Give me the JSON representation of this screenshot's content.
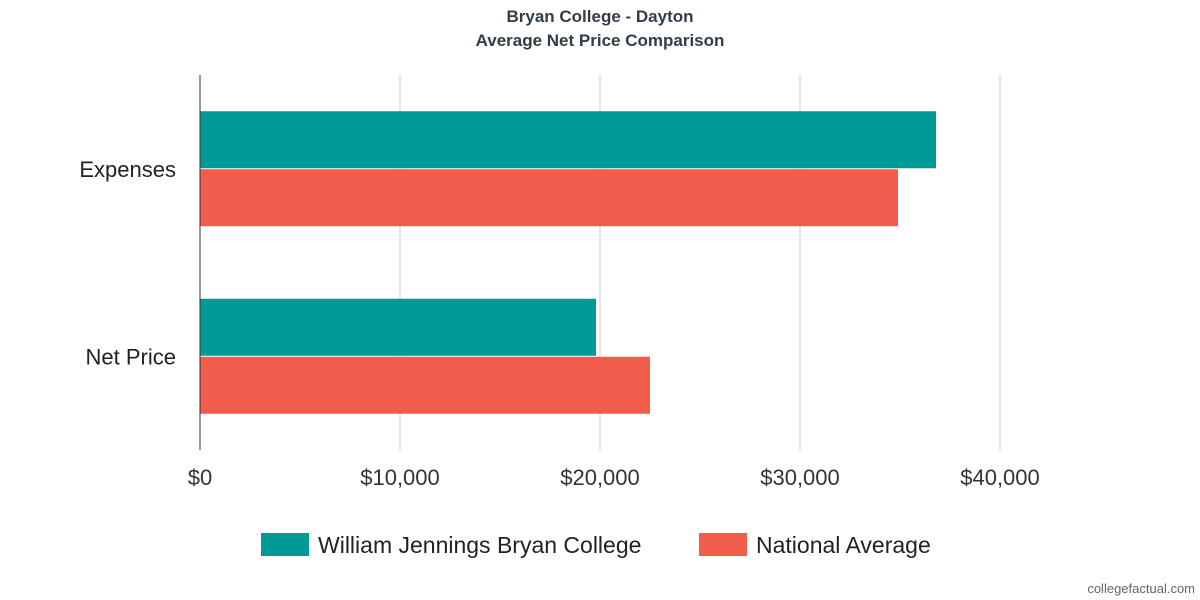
{
  "chart_data": {
    "type": "bar",
    "orientation": "horizontal",
    "title": "Bryan College - Dayton",
    "subtitle": "Average Net Price Comparison",
    "categories": [
      "Expenses",
      "Net Price"
    ],
    "series": [
      {
        "name": "William Jennings Bryan College",
        "color": "#009a96",
        "values": [
          36800,
          19800
        ]
      },
      {
        "name": "National Average",
        "color": "#f25c4c",
        "values": [
          34900,
          22500
        ]
      }
    ],
    "xlim": [
      0,
      40000
    ],
    "x_ticks": [
      0,
      10000,
      20000,
      30000,
      40000
    ],
    "x_tick_labels": [
      "$0",
      "$10,000",
      "$20,000",
      "$30,000",
      "$40,000"
    ],
    "grid": true,
    "legend_position": "bottom"
  },
  "credit": "collegefactual.com"
}
